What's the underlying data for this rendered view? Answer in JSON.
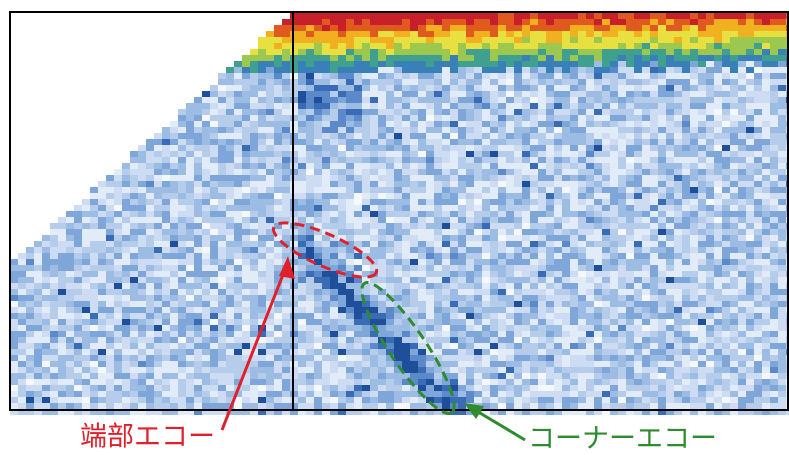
{
  "annotations": [
    {
      "label": "端部エコー",
      "color": "#e0202a"
    },
    {
      "label": "コーナーエコー",
      "color": "#2e8b2e"
    }
  ]
}
